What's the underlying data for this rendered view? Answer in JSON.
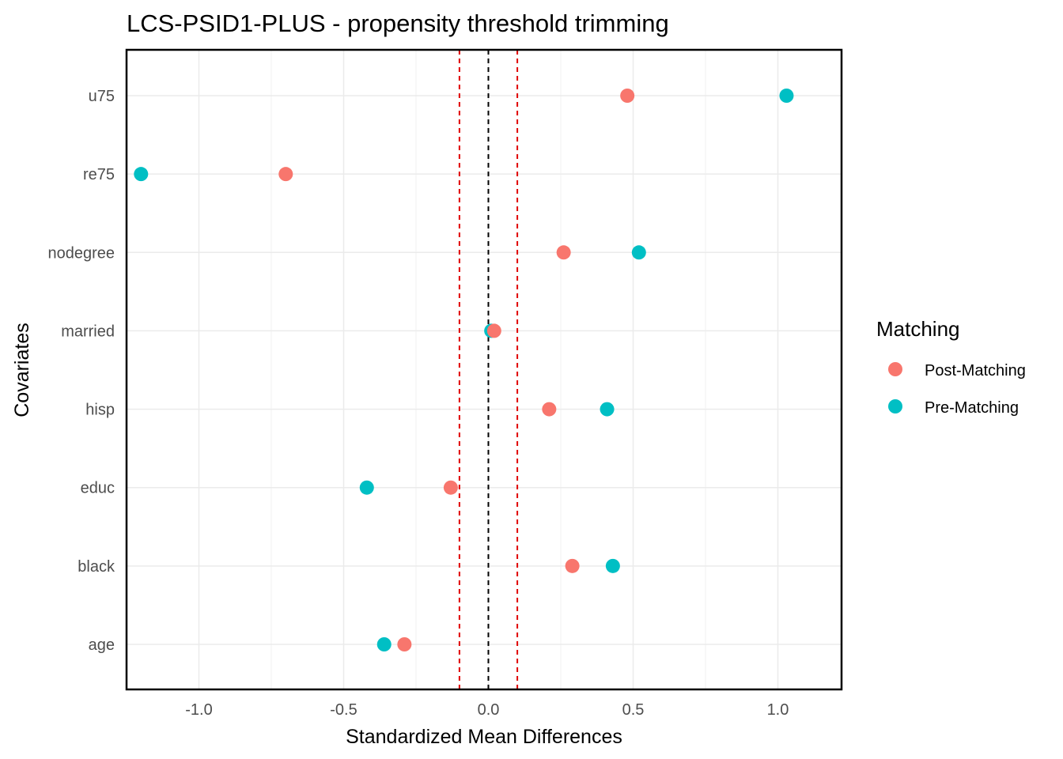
{
  "chart_data": {
    "type": "scatter",
    "title": "LCS-PSID1-PLUS - propensity threshold trimming",
    "xlabel": "Standardized Mean Differences",
    "ylabel": "Covariates",
    "xlim": [
      -1.25,
      1.22
    ],
    "x_ticks": [
      -1.0,
      -0.5,
      0.0,
      0.5,
      1.0
    ],
    "x_tick_labels": [
      "-1.0",
      "-0.5",
      "0.0",
      "0.5",
      "1.0"
    ],
    "categories": [
      "u75",
      "re75",
      "nodegree",
      "married",
      "hisp",
      "educ",
      "black",
      "age"
    ],
    "series": [
      {
        "name": "Post-Matching",
        "color": "#F8766D",
        "values": [
          0.48,
          -0.7,
          0.26,
          0.02,
          0.21,
          -0.13,
          0.29,
          -0.29
        ]
      },
      {
        "name": "Pre-Matching",
        "color": "#00BFC4",
        "values": [
          1.03,
          -1.2,
          0.52,
          0.01,
          0.41,
          -0.42,
          0.43,
          -0.36
        ]
      }
    ],
    "reference_lines": [
      {
        "x": -0.1,
        "color": "#e00000",
        "style": "dashed"
      },
      {
        "x": 0.0,
        "color": "#000000",
        "style": "dashed"
      },
      {
        "x": 0.1,
        "color": "#e00000",
        "style": "dashed"
      }
    ],
    "grid": true,
    "legend": {
      "title": "Matching",
      "placement": "right"
    }
  }
}
